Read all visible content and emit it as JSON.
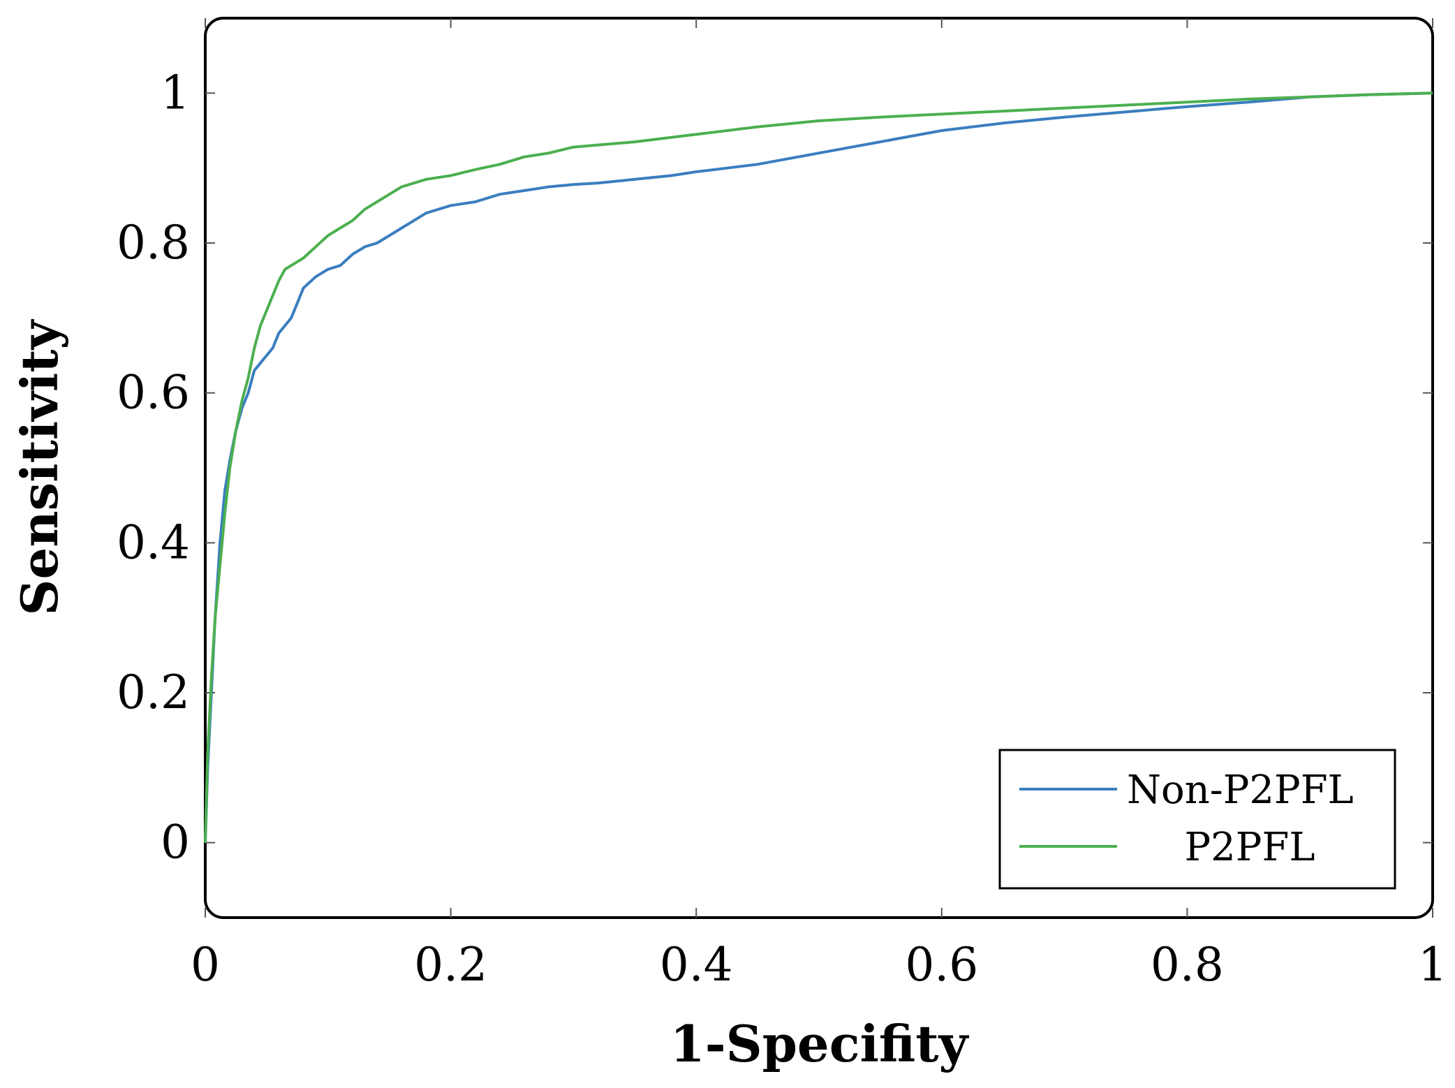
{
  "chart_data": {
    "type": "line",
    "title": "",
    "xlabel": "1-Specifity",
    "ylabel": "Sensitivity",
    "xlim": [
      0,
      1
    ],
    "ylim": [
      -0.1,
      1.1
    ],
    "xticks": [
      0,
      0.2,
      0.4,
      0.6,
      0.8,
      1
    ],
    "xtick_labels": [
      "0",
      "0.2",
      "0.4",
      "0.6",
      "0.8",
      "1"
    ],
    "yticks": [
      0,
      0.2,
      0.4,
      0.6,
      0.8,
      1
    ],
    "ytick_labels": [
      "0",
      "0.2",
      "0.4",
      "0.6",
      "0.8",
      "1"
    ],
    "grid": false,
    "legend_position": "bottom-right",
    "series": [
      {
        "name": "Non-P2PFL",
        "color": "#3a7ebf",
        "x": [
          0,
          0.002,
          0.005,
          0.008,
          0.012,
          0.016,
          0.02,
          0.025,
          0.03,
          0.035,
          0.04,
          0.045,
          0.05,
          0.055,
          0.06,
          0.065,
          0.07,
          0.075,
          0.08,
          0.09,
          0.1,
          0.11,
          0.12,
          0.13,
          0.14,
          0.15,
          0.16,
          0.17,
          0.18,
          0.19,
          0.2,
          0.22,
          0.24,
          0.26,
          0.28,
          0.3,
          0.32,
          0.35,
          0.38,
          0.4,
          0.45,
          0.5,
          0.55,
          0.6,
          0.65,
          0.7,
          0.75,
          0.8,
          0.85,
          0.9,
          0.95,
          1.0
        ],
        "y": [
          0,
          0.1,
          0.2,
          0.3,
          0.4,
          0.47,
          0.51,
          0.55,
          0.58,
          0.6,
          0.63,
          0.64,
          0.65,
          0.66,
          0.68,
          0.69,
          0.7,
          0.72,
          0.74,
          0.755,
          0.765,
          0.77,
          0.785,
          0.795,
          0.8,
          0.81,
          0.82,
          0.83,
          0.84,
          0.845,
          0.85,
          0.855,
          0.865,
          0.87,
          0.875,
          0.878,
          0.88,
          0.885,
          0.89,
          0.895,
          0.905,
          0.92,
          0.935,
          0.95,
          0.96,
          0.968,
          0.975,
          0.982,
          0.988,
          0.995,
          0.998,
          1.0
        ]
      },
      {
        "name": "P2PFL",
        "color": "#4caf50",
        "x": [
          0,
          0.002,
          0.005,
          0.008,
          0.012,
          0.016,
          0.02,
          0.025,
          0.03,
          0.035,
          0.04,
          0.045,
          0.05,
          0.055,
          0.06,
          0.065,
          0.07,
          0.08,
          0.09,
          0.1,
          0.11,
          0.12,
          0.13,
          0.14,
          0.15,
          0.16,
          0.18,
          0.2,
          0.22,
          0.24,
          0.26,
          0.28,
          0.3,
          0.35,
          0.4,
          0.45,
          0.5,
          0.55,
          0.6,
          0.65,
          0.7,
          0.75,
          0.8,
          0.85,
          0.9,
          0.95,
          1.0
        ],
        "y": [
          0,
          0.12,
          0.22,
          0.3,
          0.37,
          0.44,
          0.5,
          0.55,
          0.59,
          0.62,
          0.66,
          0.69,
          0.71,
          0.73,
          0.75,
          0.765,
          0.77,
          0.78,
          0.795,
          0.81,
          0.82,
          0.83,
          0.845,
          0.855,
          0.865,
          0.875,
          0.885,
          0.89,
          0.898,
          0.905,
          0.915,
          0.92,
          0.928,
          0.935,
          0.945,
          0.955,
          0.963,
          0.968,
          0.972,
          0.976,
          0.98,
          0.984,
          0.988,
          0.992,
          0.995,
          0.998,
          1.0
        ]
      }
    ]
  }
}
